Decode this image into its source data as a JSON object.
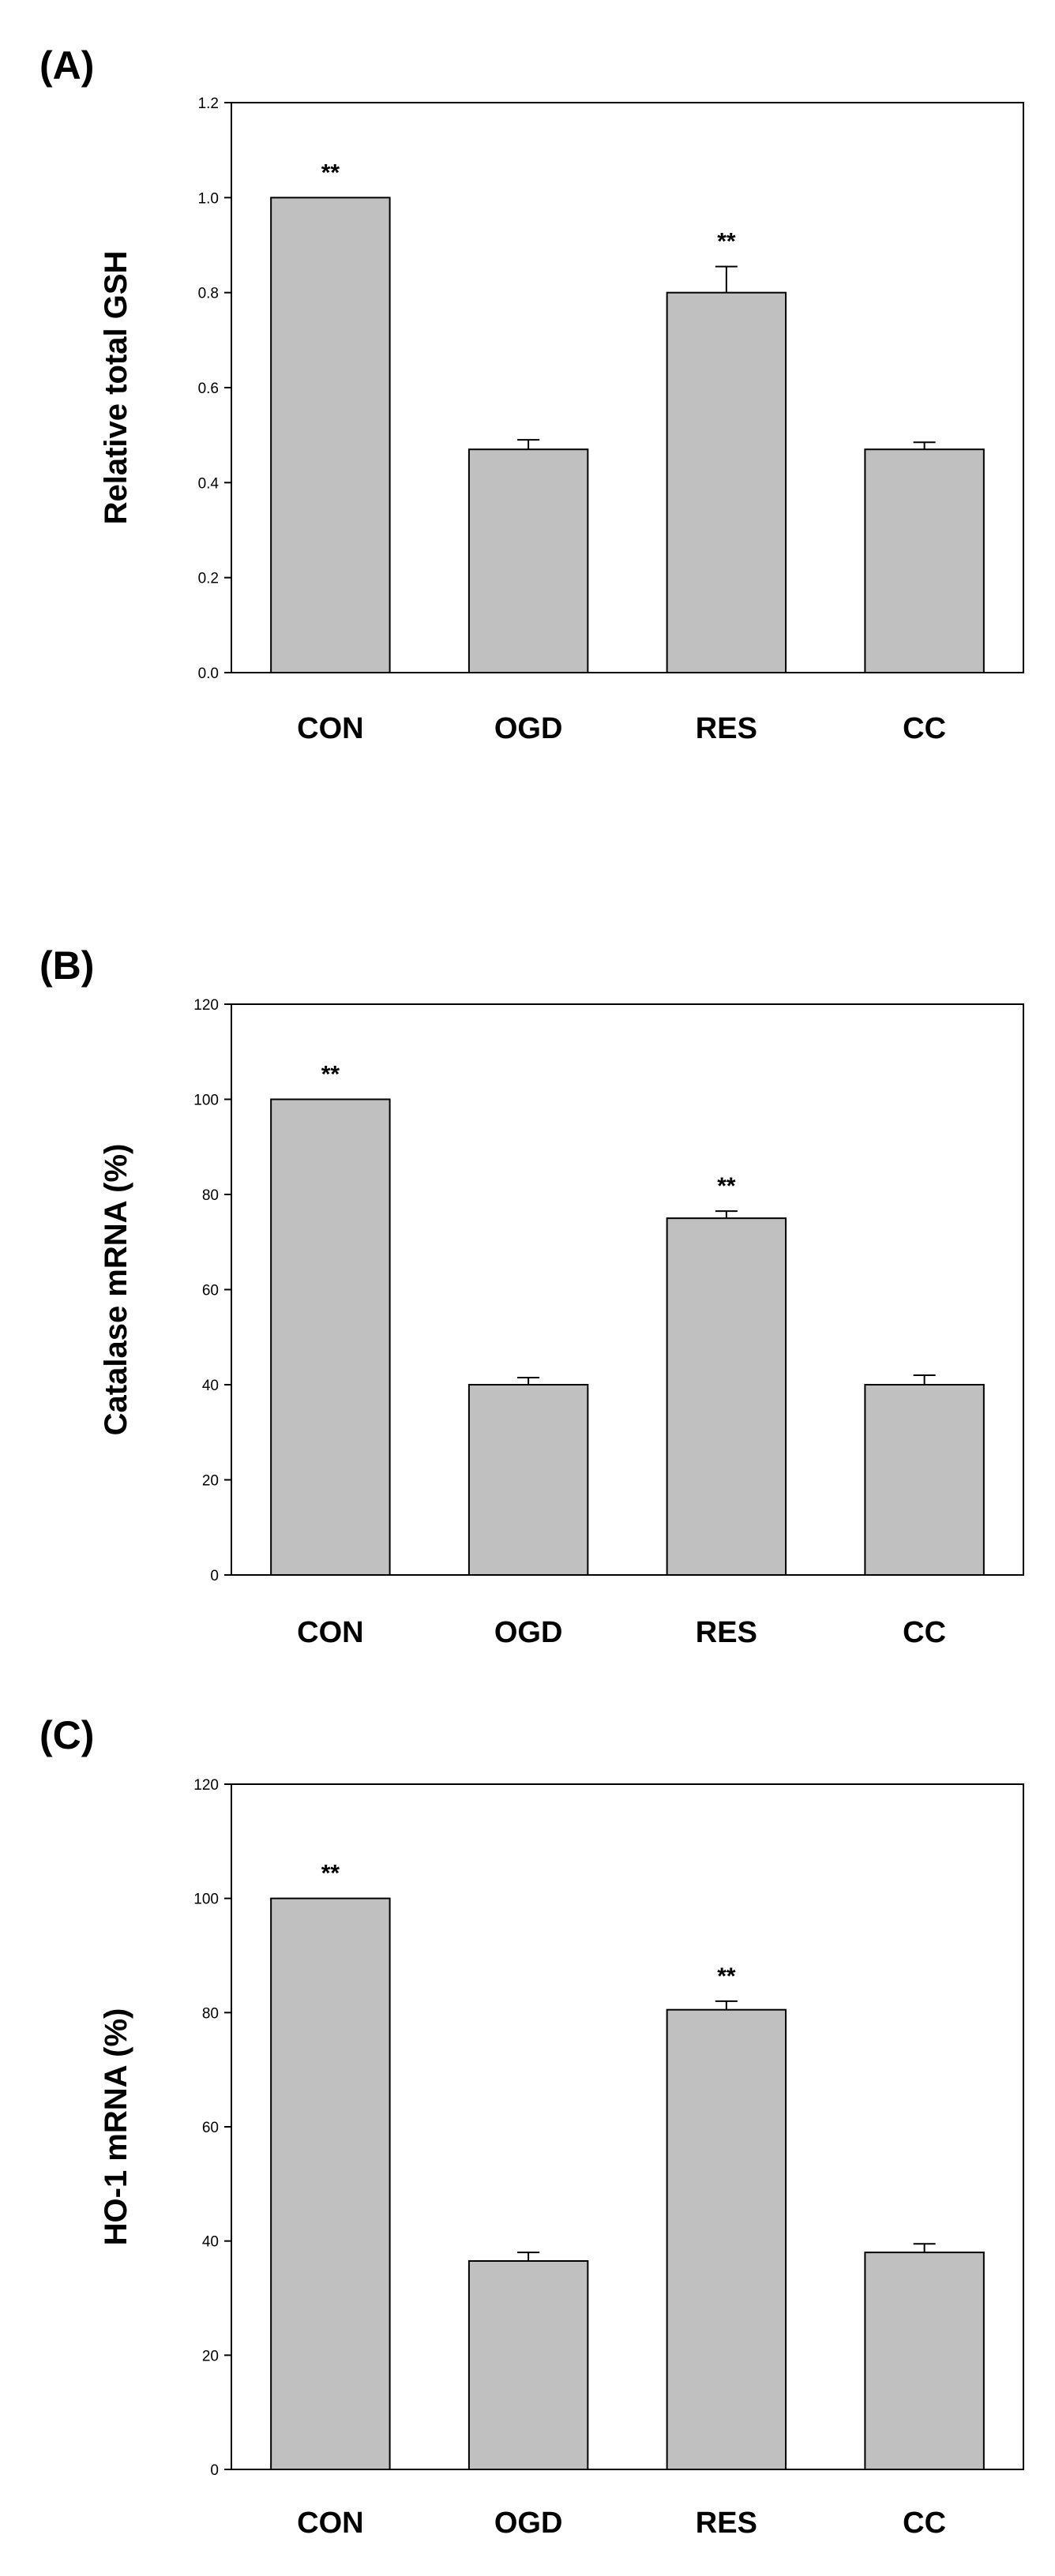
{
  "colors": {
    "bar_fill": "#c0c0c0",
    "stroke": "#000000",
    "background": "#ffffff"
  },
  "chart_data": [
    {
      "type": "bar",
      "panel_label": "(A)",
      "ylabel": "Relative total GSH",
      "xlabel": "",
      "categories": [
        "CON",
        "OGD",
        "RES",
        "CC"
      ],
      "values": [
        1.0,
        0.47,
        0.8,
        0.47
      ],
      "errors": [
        0.0,
        0.02,
        0.055,
        0.015
      ],
      "significance": [
        "**",
        "",
        "**",
        ""
      ],
      "ylim": [
        0,
        1.2
      ],
      "yticks": [
        "0.0",
        "0.2",
        "0.4",
        "0.6",
        "0.8",
        "1.0",
        "1.2"
      ],
      "grid": false,
      "legend": "none"
    },
    {
      "type": "bar",
      "panel_label": "(B)",
      "ylabel": "Catalase mRNA (%)",
      "xlabel": "",
      "categories": [
        "CON",
        "OGD",
        "RES",
        "CC"
      ],
      "values": [
        100,
        40,
        75,
        40
      ],
      "errors": [
        0,
        1.5,
        1.5,
        2
      ],
      "significance": [
        "**",
        "",
        "**",
        ""
      ],
      "ylim": [
        0,
        120
      ],
      "yticks": [
        "0",
        "20",
        "40",
        "60",
        "80",
        "100",
        "120"
      ],
      "grid": false,
      "legend": "none"
    },
    {
      "type": "bar",
      "panel_label": "(C)",
      "ylabel": "HO-1 mRNA (%)",
      "xlabel": "",
      "categories": [
        "CON",
        "OGD",
        "RES",
        "CC"
      ],
      "values": [
        100,
        36.5,
        80.5,
        38
      ],
      "errors": [
        0,
        1.5,
        1.5,
        1.5
      ],
      "significance": [
        "**",
        "",
        "**",
        ""
      ],
      "ylim": [
        0,
        120
      ],
      "yticks": [
        "0",
        "20",
        "40",
        "60",
        "80",
        "100",
        "120"
      ],
      "grid": false,
      "legend": "none"
    }
  ]
}
